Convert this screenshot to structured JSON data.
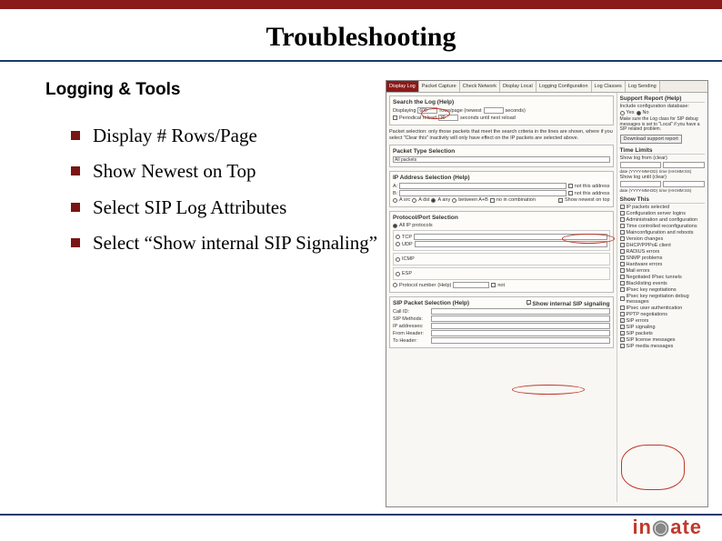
{
  "colors": {
    "brand_red": "#8b1a1a",
    "rule_blue": "#1a3a6e",
    "highlight": "#c0392b"
  },
  "slide": {
    "title": "Troubleshooting",
    "section": "Logging & Tools",
    "bullets": [
      "Display # Rows/Page",
      "Show Newest on Top",
      "Select SIP Log Attributes",
      "Select “Show internal SIP Signaling”"
    ]
  },
  "screenshot": {
    "tabs": [
      "Display Log",
      "Packet Capture",
      "Check Network",
      "Display Local",
      "Logging Configuration",
      "Log Classes",
      "Log Sending"
    ],
    "active_tab": 0,
    "search": {
      "title": "Search the Log",
      "help": "(Help)",
      "displaying_label": "Displaying",
      "displaying_value": "600",
      "rows_label": "rows/page  (newest",
      "seconds_label": "seconds)",
      "periodic_label": "Periodical reload",
      "periodic_value": "30",
      "periodic_suffix": "seconds until next reload"
    },
    "info_text": "Packet selection: only those packets that meet the search criteria in the lines are shown, where if you select \"Clear this\" inactivity will only have effect on the IP packets are selected above.",
    "packet_type": {
      "title": "Packet Type Selection",
      "option": "All packets"
    },
    "ip_addr": {
      "title": "IP Address Selection",
      "help": "(Help)",
      "a_label": "A:",
      "b_label": "B:",
      "not_a": "not this address",
      "not_b": "not this address",
      "radios": [
        "A src",
        "A dst",
        "A any",
        "between A+B"
      ],
      "selected_radio": 2,
      "no_combo": "no    in combination",
      "show_newest": "Show newest on top"
    },
    "proto": {
      "title": "Protocol/Port Selection",
      "all": "All IP protocols",
      "items": [
        "TCP",
        "UDP",
        "ICMP",
        "ESP"
      ],
      "port_label": "Protocol number",
      "help": "(Help)",
      "not": "not"
    },
    "sip": {
      "title": "SIP Packet Selection",
      "help": "(Help)",
      "rows": [
        "Call ID:",
        "SIP Methods:",
        "IP addresses:",
        "From Header:",
        "To Header:"
      ],
      "show_internal": "Show internal SIP signaling"
    },
    "support": {
      "title": "Support Report",
      "help": "(Help)",
      "include_label": "Include configuration database:",
      "yes": "Yes",
      "no": "No",
      "note": "Make sure the Log class for SIP debug messages is set to \"Local\" if you have a SIP related problem.",
      "btn": "Download support report"
    },
    "time": {
      "title": "Time Limits",
      "from_label": "Show log from (clear)",
      "from_date": "date (YYYY-MM-DD)",
      "from_time": "time (HH:MM:SS)",
      "until_label": "Show log until (clear)",
      "until_date": "date (YYYY-MM-DD)",
      "until_time": "time (HH:MM:SS)"
    },
    "show_this": {
      "title": "Show This",
      "items": [
        "IP packets selected",
        "Configuration server logins",
        "Administration and configuration",
        "Time controlled reconfigurations",
        "Mainconfiguration and reboots",
        "Version changes",
        "DHCP/PPPoE client",
        "RADIUS errors",
        "SNMP problems",
        "Hardware errors",
        "Mail errors",
        "Negotiated IPsec tunnels",
        "Blacklisting events",
        "IPsec key negotiations",
        "IPsec key negotiation debug messages",
        "IPsec user authentication",
        "PPTP negotiations",
        "SIP errors",
        "SIP signaling",
        "SIP packets",
        "SIP license messages",
        "SIP media messages"
      ],
      "checked": [
        0,
        17,
        18,
        19,
        20,
        21
      ]
    }
  },
  "logo_text": "in · ate"
}
